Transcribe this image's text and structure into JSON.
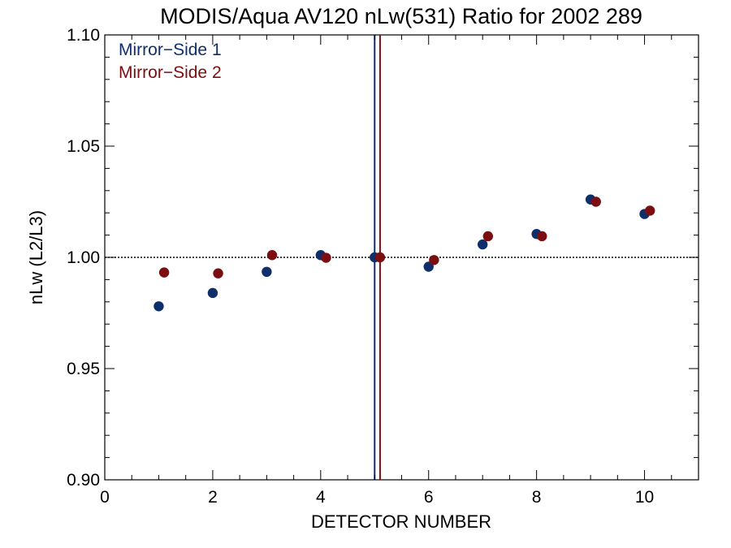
{
  "chart_data": {
    "type": "scatter",
    "title": "MODIS/Aqua AV120 nLw(531) Ratio for 2002 289",
    "xlabel": "DETECTOR NUMBER",
    "ylabel": "nLw (L2/L3)",
    "xlim": [
      0,
      11
    ],
    "ylim": [
      0.9,
      1.1
    ],
    "xticks": [
      0,
      2,
      4,
      6,
      8,
      10
    ],
    "xtick_labels": [
      "0",
      "2",
      "4",
      "6",
      "8",
      "10"
    ],
    "yticks": [
      0.9,
      0.95,
      1.0,
      1.05,
      1.1
    ],
    "ytick_labels": [
      "0.90",
      "0.95",
      "1.00",
      "1.05",
      "1.10"
    ],
    "reference_line_y": 1.0,
    "grid": false,
    "legend_position": "top-left",
    "series": [
      {
        "name": "Mirror−Side 1",
        "color": "#0f2f6b",
        "marker_line_x": 5.0,
        "x": [
          1,
          2,
          3,
          4,
          5,
          6,
          7,
          8,
          9,
          10
        ],
        "y": [
          0.978,
          0.984,
          0.9935,
          1.001,
          1.0,
          0.9958,
          1.0058,
          1.0105,
          1.026,
          1.0195
        ]
      },
      {
        "name": "Mirror−Side 2",
        "color": "#7b0e10",
        "marker_line_x": 5.1,
        "x": [
          1.1,
          2.1,
          3.1,
          4.1,
          5.1,
          6.1,
          7.1,
          8.1,
          9.1,
          10.1
        ],
        "y": [
          0.9932,
          0.9928,
          1.001,
          0.9998,
          1.0,
          0.9988,
          1.0095,
          1.0095,
          1.025,
          1.021
        ]
      }
    ]
  }
}
